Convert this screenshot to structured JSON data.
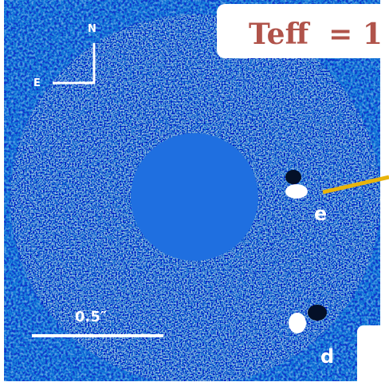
{
  "label": "Teff  = 1",
  "compass": {
    "north": "N",
    "east": "E"
  },
  "planets": [
    "e",
    "d"
  ],
  "scale_bar": "0.5″"
}
